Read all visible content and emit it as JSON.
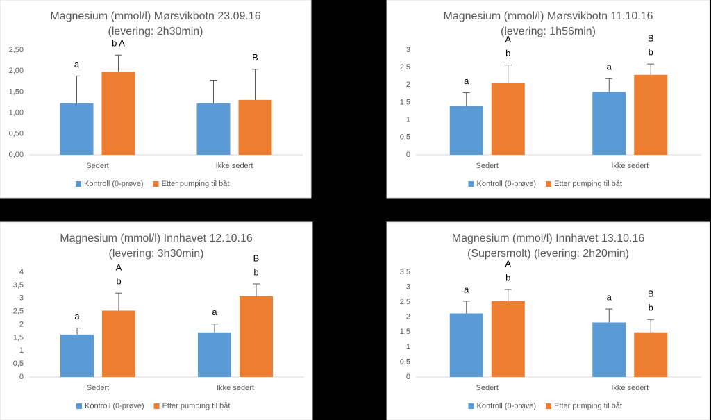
{
  "chart_data": [
    {
      "type": "bar",
      "title": "Magnesium (mmol/l) Mørsvikbotn 23.09.16",
      "subtitle": "(levering: 2h30min)",
      "categories": [
        "Sedert",
        "Ikke sedert"
      ],
      "series": [
        {
          "name": "Kontroll (0-prøve)",
          "color": "#5b9bd5",
          "values": [
            1.23,
            1.23
          ],
          "errors": [
            0.65,
            0.55
          ],
          "letters": [
            [
              "a"
            ],
            null
          ]
        },
        {
          "name": "Etter pumping til båt",
          "color": "#ed7d31",
          "values": [
            1.98,
            1.31
          ],
          "errors": [
            0.4,
            0.73
          ],
          "letters": [
            [
              "b A"
            ],
            [
              "B"
            ]
          ]
        }
      ],
      "ylim": [
        0,
        2.5
      ],
      "yticks": [
        {
          "value": 0,
          "label": "0,00"
        },
        {
          "value": 0.5,
          "label": "0,50"
        },
        {
          "value": 1,
          "label": "1,00"
        },
        {
          "value": 1.5,
          "label": "1,50"
        },
        {
          "value": 2,
          "label": "2,00"
        },
        {
          "value": 2.5,
          "label": "2,50"
        }
      ],
      "legend": "bottom"
    },
    {
      "type": "bar",
      "title": "Magnesium (mmol/l) Mørsvikbotn 11.10.16",
      "subtitle": "(levering: 1h56min)",
      "categories": [
        "Sedert",
        "Ikke sedert"
      ],
      "series": [
        {
          "name": "Kontroll (0-prøve)",
          "color": "#5b9bd5",
          "values": [
            1.4,
            1.8
          ],
          "errors": [
            0.38,
            0.38
          ],
          "letters": [
            [
              "a"
            ],
            [
              "a"
            ]
          ]
        },
        {
          "name": "Etter pumping til båt",
          "color": "#ed7d31",
          "values": [
            2.05,
            2.29
          ],
          "errors": [
            0.52,
            0.31
          ],
          "letters": [
            [
              "A",
              "b"
            ],
            [
              "B",
              "b"
            ]
          ]
        }
      ],
      "ylim": [
        0,
        3
      ],
      "yticks": [
        0,
        {
          "value": 0.5,
          "label": "0,5"
        },
        1,
        {
          "value": 1.5,
          "label": "1,5"
        },
        2,
        {
          "value": 2.5,
          "label": "2,5"
        },
        3
      ],
      "legend": "bottom"
    },
    {
      "type": "bar",
      "title": "Magnesium (mmol/l) Innhavet 12.10.16",
      "subtitle": "(levering: 3h30min)",
      "categories": [
        "Sedert",
        "Ikke sedert"
      ],
      "series": [
        {
          "name": "Kontroll (0-prøve)",
          "color": "#5b9bd5",
          "values": [
            1.62,
            1.7
          ],
          "errors": [
            0.25,
            0.32
          ],
          "letters": [
            [
              "a"
            ],
            [
              "a"
            ]
          ]
        },
        {
          "name": "Etter pumping til båt",
          "color": "#ed7d31",
          "values": [
            2.53,
            3.08
          ],
          "errors": [
            0.67,
            0.47
          ],
          "letters": [
            [
              "A",
              "b"
            ],
            [
              "B",
              "b"
            ]
          ]
        }
      ],
      "ylim": [
        0,
        4
      ],
      "yticks": [
        0,
        {
          "value": 0.5,
          "label": "0,5"
        },
        1,
        {
          "value": 1.5,
          "label": "1,5"
        },
        2,
        {
          "value": 2.5,
          "label": "2,5"
        },
        3,
        {
          "value": 3.5,
          "label": "3,5"
        },
        4
      ],
      "legend": "bottom"
    },
    {
      "type": "bar",
      "title": "Magnesium (mmol/l) Innhavet 13.10.16",
      "subtitle": "(Supersmolt) (levering: 2h20min)",
      "categories": [
        "Sedert",
        "Ikke sedert"
      ],
      "series": [
        {
          "name": "Kontroll (0-prøve)",
          "color": "#5b9bd5",
          "values": [
            2.12,
            1.82
          ],
          "errors": [
            0.41,
            0.45
          ],
          "letters": [
            [
              "a"
            ],
            [
              "a"
            ]
          ]
        },
        {
          "name": "Etter pumping til båt",
          "color": "#ed7d31",
          "values": [
            2.53,
            1.49
          ],
          "errors": [
            0.39,
            0.43
          ],
          "letters": [
            [
              "A",
              "b"
            ],
            [
              "B",
              "b"
            ]
          ]
        }
      ],
      "ylim": [
        0,
        3.5
      ],
      "yticks": [
        0,
        {
          "value": 0.5,
          "label": "0,5"
        },
        1,
        {
          "value": 1.5,
          "label": "1,5"
        },
        2,
        {
          "value": 2.5,
          "label": "2,5"
        },
        3,
        {
          "value": 3.5,
          "label": "3,5"
        }
      ],
      "legend": "bottom"
    }
  ]
}
